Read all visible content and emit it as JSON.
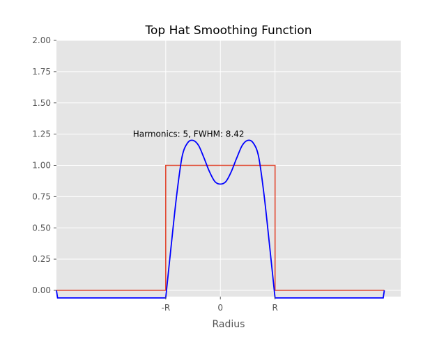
{
  "chart_data": {
    "type": "line",
    "title": "Top Hat Smoothing Function",
    "xlabel": "Radius",
    "ylabel": "",
    "annotation": {
      "text": "Harmonics: 5, FWHM: 8.42",
      "x": -1.6,
      "y": 1.25
    },
    "xlim": [
      -3.0,
      3.3
    ],
    "ylim": [
      -0.05,
      2.0
    ],
    "x_ticks": [
      {
        "value": -1,
        "label": "-R"
      },
      {
        "value": 0,
        "label": "0"
      },
      {
        "value": 1,
        "label": "R"
      }
    ],
    "y_ticks": [
      {
        "value": 0.0,
        "label": "0.00"
      },
      {
        "value": 0.25,
        "label": "0.25"
      },
      {
        "value": 0.5,
        "label": "0.50"
      },
      {
        "value": 0.75,
        "label": "0.75"
      },
      {
        "value": 1.0,
        "label": "1.00"
      },
      {
        "value": 1.25,
        "label": "1.25"
      },
      {
        "value": 1.5,
        "label": "1.50"
      },
      {
        "value": 1.75,
        "label": "1.75"
      },
      {
        "value": 2.0,
        "label": "2.00"
      }
    ],
    "grid": true,
    "series": [
      {
        "color": "#e24a33",
        "x": [
          -3.0,
          -1.0,
          -1.0,
          1.0,
          1.0,
          3.0
        ],
        "y": [
          0.0,
          0.0,
          1.0,
          1.0,
          0.0,
          0.0
        ]
      },
      {
        "color": "#0000ff",
        "x": [
          -3.0,
          -2.98,
          -1.0,
          -0.9,
          -0.8,
          -0.7,
          -0.6,
          -0.5,
          -0.4,
          -0.3,
          -0.2,
          -0.1,
          0.0,
          0.1,
          0.2,
          0.3,
          0.4,
          0.5,
          0.6,
          0.7,
          0.8,
          0.9,
          1.0,
          2.98,
          3.0
        ],
        "y": [
          0.0,
          -0.06,
          -0.06,
          0.36,
          0.76,
          1.07,
          1.18,
          1.2,
          1.16,
          1.06,
          0.95,
          0.87,
          0.85,
          0.87,
          0.95,
          1.06,
          1.16,
          1.2,
          1.18,
          1.07,
          0.76,
          0.36,
          -0.06,
          -0.06,
          0.0
        ]
      }
    ],
    "colors": {
      "background": "#e5e5e5",
      "grid": "#ffffff",
      "tick_text": "#555555",
      "title": "#000000"
    }
  }
}
